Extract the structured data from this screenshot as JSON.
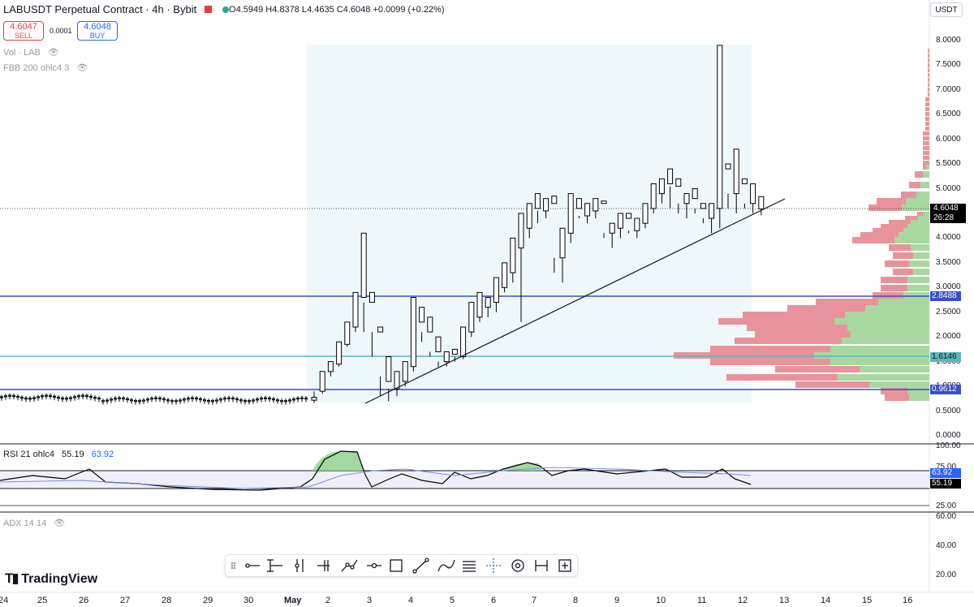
{
  "header": {
    "title": "LABUSDT Perpetual Contract · 4h · Bybit",
    "ohlc": {
      "o": "4.5949",
      "h": "4.8378",
      "l": "4.4635",
      "c": "4.6048",
      "change": "+0.0099 (+0.22%)"
    },
    "sell": {
      "price": "4.6047",
      "label": "SELL"
    },
    "buy": {
      "price": "4.6048",
      "label": "BUY"
    },
    "spread": "0.0001",
    "currency": "USDT"
  },
  "indicators": {
    "vol": "Vol · LAB",
    "fbb": "FBB 200 ohlc4 3",
    "rsi_name": "RSI 21 ohlc4",
    "rsi_value": "55.19",
    "rsi_ma": "63.92",
    "adx": "ADX 14 14"
  },
  "price_axis": {
    "ticks": [
      "8.0000",
      "7.5000",
      "7.0000",
      "6.5000",
      "6.0000",
      "5.5000",
      "5.0000",
      "4.5000",
      "4.0000",
      "3.5000",
      "3.0000",
      "2.5000",
      "2.0000",
      "1.5000",
      "1.0000",
      "0.5000",
      "0.0000"
    ],
    "last_price": "4.6048",
    "countdown": "26:28",
    "levels": [
      "2.8488",
      "1.6146",
      "0.9612"
    ]
  },
  "rsi_axis": {
    "ticks": [
      "100.00",
      "75.00",
      "25.00"
    ],
    "badge_ma": "63.92",
    "badge_rsi": "55.19"
  },
  "adx_axis": {
    "ticks": [
      "60.00",
      "40.00",
      "20.00"
    ]
  },
  "time_axis": [
    "24",
    "25",
    "26",
    "27",
    "28",
    "29",
    "30",
    "May",
    "2",
    "3",
    "4",
    "5",
    "6",
    "7",
    "8",
    "9",
    "10",
    "11",
    "12",
    "13",
    "14",
    "15",
    "16"
  ],
  "brand": "TradingView",
  "colors": {
    "up": "#ffffff",
    "down": "#000000",
    "level_blue": "#3a4fc8",
    "level_cyan": "#5ab6c0",
    "sell": "#f23645",
    "buy": "#2962ff",
    "vp_red": "#e8939b",
    "vp_green": "#a8d8a0"
  },
  "toolbar_icons": [
    "drag-handle-icon",
    "horizontal-ray-icon",
    "cross-line-icon",
    "vertical-lines-icon",
    "long-position-icon",
    "path-icon",
    "line-segment-icon",
    "rectangle-icon",
    "trend-line-icon",
    "brush-icon",
    "fib-retracement-icon",
    "crosshair-icon",
    "eye-icon",
    "measure-icon",
    "zoom-icon"
  ],
  "chart_data": {
    "type": "candlestick",
    "ylim": [
      0,
      8.0
    ],
    "candles_approx": [
      {
        "t": "May 2",
        "o": 0.72,
        "h": 0.8,
        "l": 0.66,
        "c": 0.78
      },
      {
        "t": "May 2",
        "o": 0.8,
        "h": 1.5,
        "l": 0.78,
        "c": 1.4
      },
      {
        "t": "May 2",
        "o": 1.4,
        "h": 2.4,
        "l": 1.35,
        "c": 2.2
      },
      {
        "t": "May 2",
        "o": 2.2,
        "h": 3.0,
        "l": 2.1,
        "c": 2.8
      },
      {
        "t": "May 2",
        "o": 2.8,
        "h": 4.1,
        "l": 1.6,
        "c": 2.2
      },
      {
        "t": "May 3",
        "o": 2.1,
        "h": 2.2,
        "l": 0.7,
        "c": 0.95
      },
      {
        "t": "May 3",
        "o": 1.0,
        "h": 1.5,
        "l": 0.9,
        "c": 1.3
      },
      {
        "t": "May 4",
        "o": 1.3,
        "h": 2.8,
        "l": 1.2,
        "c": 2.3
      },
      {
        "t": "May 4",
        "o": 2.3,
        "h": 2.6,
        "l": 1.5,
        "c": 1.6
      },
      {
        "t": "May 5",
        "o": 1.6,
        "h": 2.2,
        "l": 1.4,
        "c": 1.65
      },
      {
        "t": "May 5",
        "o": 1.7,
        "h": 2.9,
        "l": 1.6,
        "c": 2.6
      },
      {
        "t": "May 6",
        "o": 2.6,
        "h": 3.2,
        "l": 2.4,
        "c": 3.0
      },
      {
        "t": "May 6",
        "o": 3.0,
        "h": 4.2,
        "l": 2.3,
        "c": 4.0
      },
      {
        "t": "May 7",
        "o": 4.0,
        "h": 4.9,
        "l": 3.8,
        "c": 4.6
      },
      {
        "t": "May 7",
        "o": 4.6,
        "h": 4.9,
        "l": 3.1,
        "c": 3.5
      },
      {
        "t": "May 8",
        "o": 3.5,
        "h": 4.8,
        "l": 3.4,
        "c": 4.7
      },
      {
        "t": "May 9",
        "o": 4.6,
        "h": 4.7,
        "l": 3.8,
        "c": 4.0
      },
      {
        "t": "May 9",
        "o": 4.0,
        "h": 4.5,
        "l": 3.9,
        "c": 4.2
      },
      {
        "t": "May 10",
        "o": 4.2,
        "h": 5.4,
        "l": 4.1,
        "c": 5.1
      },
      {
        "t": "May 10",
        "o": 5.1,
        "h": 5.2,
        "l": 4.4,
        "c": 4.6
      },
      {
        "t": "May 11",
        "o": 4.6,
        "h": 7.9,
        "l": 4.2,
        "c": 5.4
      },
      {
        "t": "May 11",
        "o": 5.4,
        "h": 5.8,
        "l": 4.4,
        "c": 4.9
      },
      {
        "t": "May 12",
        "o": 4.59,
        "h": 4.84,
        "l": 4.46,
        "c": 4.6
      }
    ],
    "levels": [
      2.8488,
      1.6146,
      0.9612
    ],
    "rsi": {
      "value": 55.19,
      "ma": 63.92,
      "ylim": [
        25,
        100
      ]
    }
  }
}
